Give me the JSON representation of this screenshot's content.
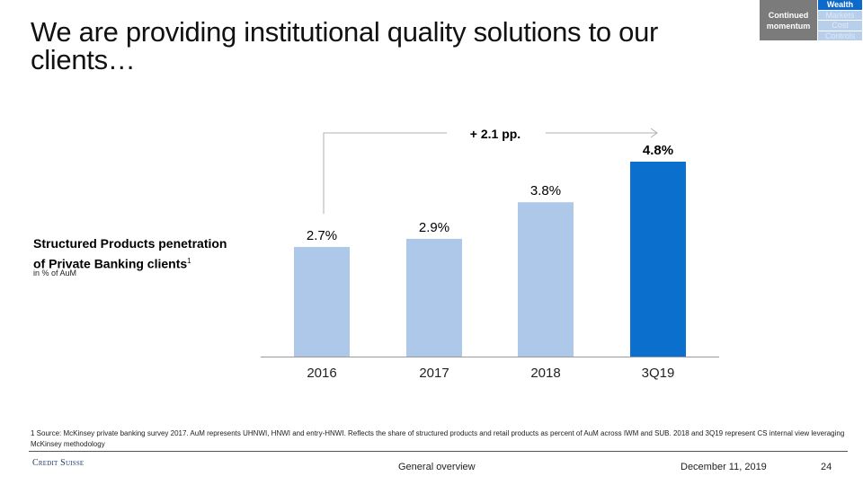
{
  "header": {
    "title": "We are providing institutional quality solutions to our clients…"
  },
  "nav_box": {
    "label": "Continued momentum",
    "items": [
      {
        "label": "Wealth",
        "active": true
      },
      {
        "label": "Markets",
        "active": false
      },
      {
        "label": "Cost",
        "active": false
      },
      {
        "label": "Controls",
        "active": false
      }
    ]
  },
  "side_label": {
    "title_line1": "Structured Products penetration",
    "title_line2": "of Private Banking clients",
    "footnote_ref": "1",
    "unit": "in % of AuM"
  },
  "chart_data": {
    "type": "bar",
    "categories": [
      "2016",
      "2017",
      "2018",
      "3Q19"
    ],
    "values": [
      2.7,
      2.9,
      3.8,
      4.8
    ],
    "data_labels": [
      "2.7%",
      "2.9%",
      "3.8%",
      "4.8%"
    ],
    "highlight_index": 3,
    "colors": {
      "default": "#aec8ea",
      "highlight": "#0a6fcd"
    },
    "annotation": "+ 2.1 pp.",
    "ylim": [
      0,
      4.8
    ]
  },
  "footnote": "1 Source: McKinsey private banking survey 2017. AuM represents UHNWI, HNWI and entry-HNWI. Reflects the share of structured products and retail products as percent of AuM across IWM and SUB. 2018 and 3Q19 represent CS internal view leveraging McKinsey methodology",
  "footer": {
    "logo": "Credit Suisse",
    "section": "General overview",
    "date": "December 11, 2019",
    "page": "24"
  }
}
